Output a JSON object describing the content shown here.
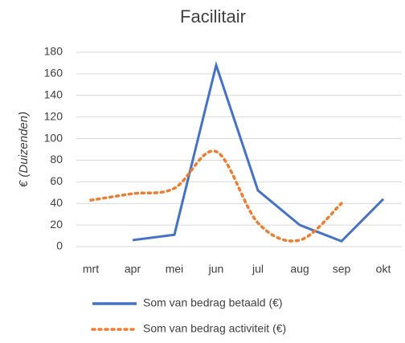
{
  "chart_data": {
    "type": "line",
    "title": "Facilitair",
    "y_label": "€ (Duizenden)",
    "categories": [
      "mrt",
      "apr",
      "mei",
      "jun",
      "jul",
      "aug",
      "sep",
      "okt"
    ],
    "series": [
      {
        "name": "Som van bedrag betaald (€)",
        "color": "#4472c4",
        "style": "solid",
        "values": [
          null,
          6,
          11,
          168,
          52,
          20,
          5,
          44
        ]
      },
      {
        "name": "Som van bedrag activiteit (€)",
        "color": "#ed7d31",
        "style": "dotted",
        "smooth": true,
        "values": [
          43,
          49,
          54,
          88,
          22,
          6,
          40,
          null
        ]
      }
    ],
    "ylim": [
      0,
      180
    ],
    "yticks": [
      0,
      20,
      40,
      60,
      80,
      100,
      120,
      140,
      160,
      180
    ],
    "grid": true,
    "legend": "bottom"
  }
}
